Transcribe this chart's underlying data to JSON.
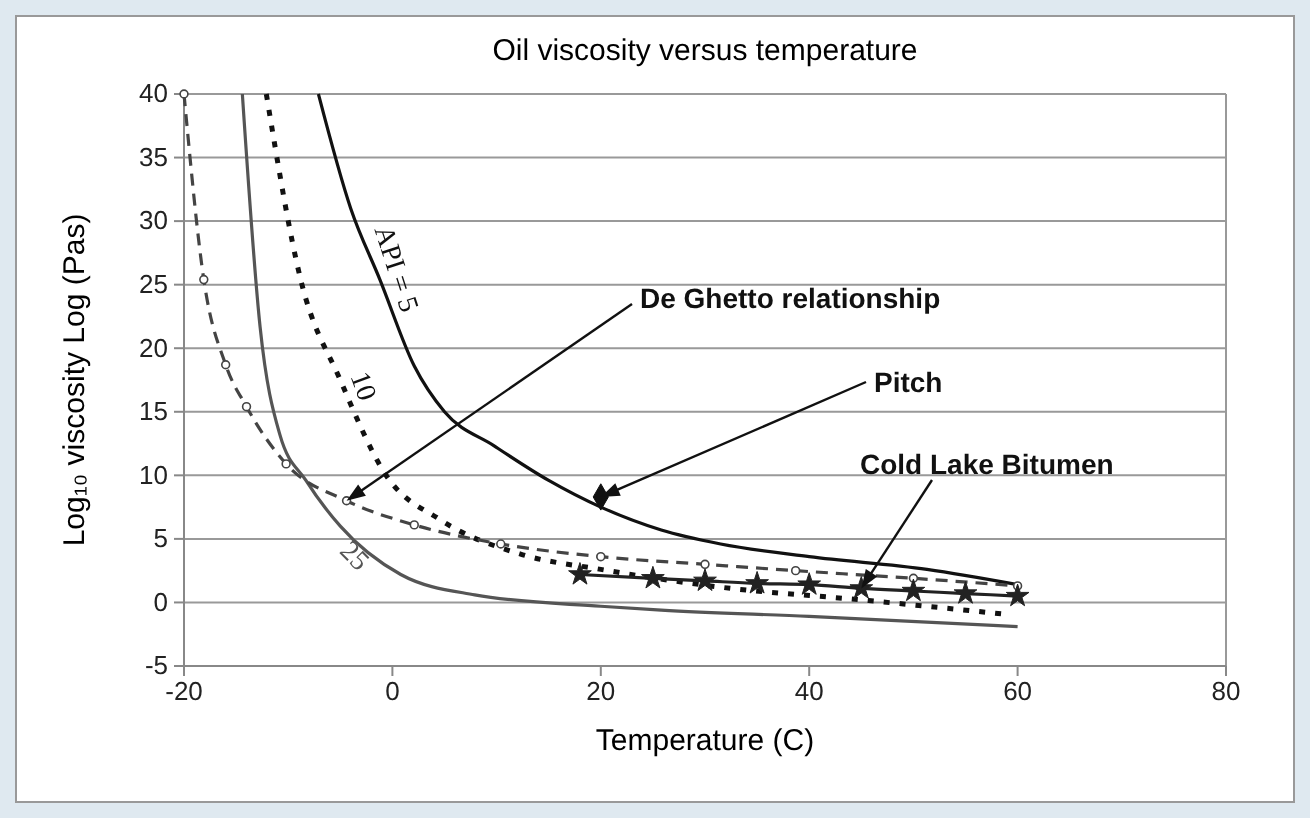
{
  "chart_data": {
    "type": "line",
    "title": "Oil viscosity versus temperature",
    "xlabel": "Temperature (C)",
    "ylabel": "Log₁₀ viscosity Log (Pas)",
    "xlim": [
      -20,
      80
    ],
    "xticks": [
      -20,
      0,
      20,
      40,
      60,
      80
    ],
    "ylim": [
      -5,
      40
    ],
    "yticks": [
      -5,
      0,
      5,
      10,
      15,
      20,
      25,
      30,
      35,
      40
    ],
    "grid": "y",
    "series": [
      {
        "name": "API = 5",
        "color": "#111111",
        "line_style": "solid",
        "marker": "none",
        "x": [
          -7.1,
          -4,
          -1.2,
          2.1,
          5,
          9.8,
          15,
          20,
          25.8,
          31.5,
          40,
          51.3,
          60
        ],
        "values": [
          40,
          31,
          25.4,
          18.6,
          15,
          12.3,
          9.6,
          7.5,
          5.7,
          4.6,
          3.6,
          2.6,
          1.4
        ]
      },
      {
        "name": "10",
        "color": "#111111",
        "line_style": "dotted",
        "marker": "none",
        "x": [
          -12.1,
          -8.8,
          -5,
          -0.6,
          4.6,
          12.3,
          20,
          31.5,
          45,
          58.5
        ],
        "values": [
          40,
          25.4,
          17.5,
          10,
          6.5,
          3.8,
          2.6,
          1.2,
          0.2,
          -0.9
        ]
      },
      {
        "name": "25",
        "color": "#555555",
        "line_style": "solid",
        "marker": "none",
        "x": [
          -14.4,
          -12.7,
          -10.8,
          -8.3,
          -5,
          0.8,
          7.9,
          20,
          25.8,
          40,
          60
        ],
        "values": [
          40,
          21.7,
          13.2,
          9.6,
          6,
          2.2,
          0.6,
          -0.3,
          -0.6,
          -1.1,
          -1.9
        ]
      },
      {
        "name": "De Ghetto relationship",
        "color": "#444444",
        "line_style": "dashed",
        "marker": "circle",
        "x": [
          -20,
          -18.1,
          -16,
          -14,
          -10.2,
          -4.4,
          2.1,
          10.4,
          20,
          30,
          38.7,
          50,
          60
        ],
        "values": [
          40,
          25.4,
          18.7,
          15.4,
          10.9,
          8,
          6.1,
          4.6,
          3.6,
          3,
          2.5,
          1.9,
          1.3
        ]
      },
      {
        "name": "Cold Lake Bitumen",
        "color": "#222222",
        "line_style": "solid",
        "marker": "star",
        "x": [
          18,
          25,
          30,
          35,
          40,
          45,
          50,
          55,
          60
        ],
        "values": [
          2.2,
          1.9,
          1.7,
          1.5,
          1.4,
          1.1,
          0.9,
          0.7,
          0.5
        ]
      },
      {
        "name": "Pitch",
        "type": "scatter",
        "color": "#111111",
        "marker": "diamond",
        "x": [
          20
        ],
        "values": [
          8.3
        ]
      }
    ]
  }
}
